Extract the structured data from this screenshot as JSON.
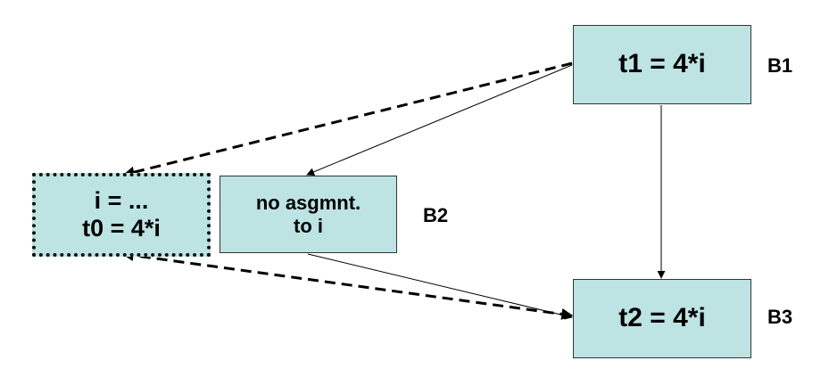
{
  "colors": {
    "box_fill": "#bde3e3",
    "edge": "#000000"
  },
  "nodes": {
    "b1": {
      "label": "B1",
      "lines": [
        "t1 = 4*i"
      ]
    },
    "b2": {
      "label": "B2",
      "lines": [
        "no asgmnt.",
        "to i"
      ]
    },
    "b3": {
      "label": "B3",
      "lines": [
        "t2 = 4*i"
      ]
    },
    "new_block": {
      "lines": [
        "i = ...",
        "t0 = 4*i"
      ]
    }
  },
  "edges": [
    {
      "from": "b1",
      "to": "b2",
      "style": "solid"
    },
    {
      "from": "b1",
      "to": "b3",
      "style": "solid"
    },
    {
      "from": "b2",
      "to": "b3",
      "style": "solid"
    },
    {
      "from": "b1",
      "to": "new_block",
      "style": "dashed"
    },
    {
      "from": "new_block",
      "to": "b3",
      "style": "dashed"
    }
  ]
}
